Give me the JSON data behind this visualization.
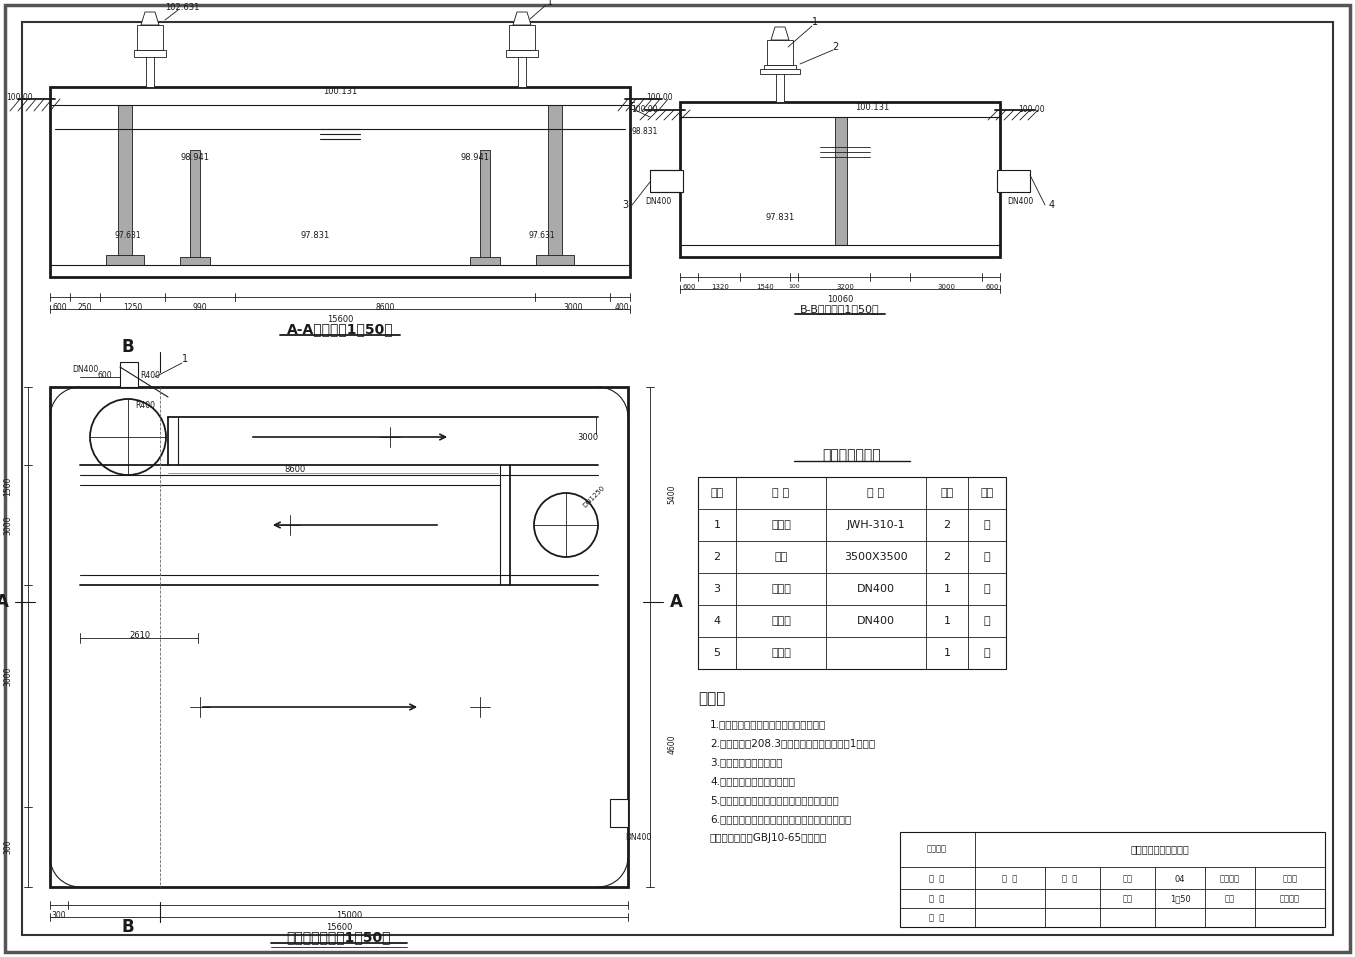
{
  "aa_title": "A-A剑面图（1：50）",
  "bb_title": "B-B剑面图（1：50）",
  "plan_title": "接触池平面图（1：50）",
  "table_title": "主要设备材料表",
  "table_headers": [
    "编号",
    "名 称",
    "规 格",
    "数量",
    "单位"
  ],
  "table_rows": [
    [
      "1",
      "搞拌机",
      "JWH-310-1",
      "2",
      "台"
    ],
    [
      "2",
      "钉板",
      "3500X3500",
      "2",
      "块"
    ],
    [
      "3",
      "进水管",
      "DN400",
      "1",
      "根"
    ],
    [
      "4",
      "出水管",
      "DN400",
      "1",
      "个"
    ],
    [
      "5",
      "加氯管",
      "",
      "1",
      "根"
    ]
  ],
  "notes_title": "说明：",
  "notes": [
    "1.图中单位高程以米计，其余以毫米计；",
    "2.设计流量：208.3立方米每小时；接触时间1小时；",
    "3.管道标高为中心标高；",
    "4.池体的材料是钉筋混凝土；",
    "5.所有管支架均根据有关图集进行制作安装；",
    "6.本池的施工安装及验收均按照钉筋混凝土工程施",
    "工及验收规范（GBJ10-65）进行。"
  ]
}
